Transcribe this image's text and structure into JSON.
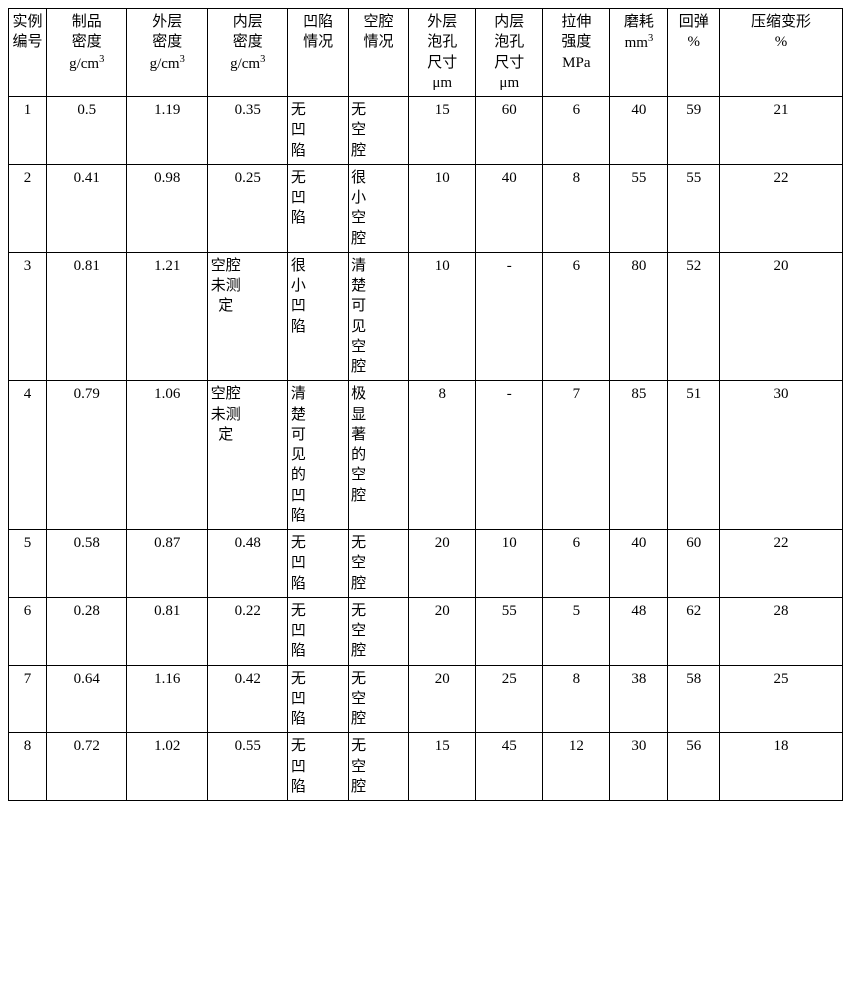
{
  "table": {
    "font_family": "SimSun",
    "border_color": "#000000",
    "background_color": "#ffffff",
    "text_color": "#000000",
    "font_size_pt": 11,
    "columns": [
      {
        "key": "id",
        "label": "实例编号",
        "unit": "",
        "width": 34,
        "vertical_label": true
      },
      {
        "key": "density",
        "label": "制品密度",
        "unit": "g/cm³",
        "width": 72,
        "vertical_label": true
      },
      {
        "key": "od",
        "label": "外层密度",
        "unit": "g/cm³",
        "width": 72,
        "vertical_label": true
      },
      {
        "key": "idens",
        "label": "内层密度",
        "unit": "g/cm³",
        "width": 72,
        "vertical_label": true
      },
      {
        "key": "dent",
        "label": "凹陷情况",
        "unit": "",
        "width": 54,
        "vertical_label": true
      },
      {
        "key": "cavity",
        "label": "空腔情况",
        "unit": "",
        "width": 54,
        "vertical_label": true
      },
      {
        "key": "opore",
        "label": "外层泡孔尺寸",
        "unit": "μm",
        "width": 60,
        "vertical_label": true
      },
      {
        "key": "ipore",
        "label": "内层泡孔尺寸",
        "unit": "μm",
        "width": 60,
        "vertical_label": true
      },
      {
        "key": "tensile",
        "label": "拉伸强度",
        "unit": "MPa",
        "width": 60,
        "vertical_label": true
      },
      {
        "key": "wear",
        "label": "磨耗",
        "unit": "mm³",
        "width": 52,
        "vertical_label": true
      },
      {
        "key": "rebound",
        "label": "回弹",
        "unit": "%",
        "width": 46,
        "vertical_label": true
      },
      {
        "key": "compset",
        "label": "压缩变形",
        "unit": "%",
        "width": 110,
        "vertical_label": false
      }
    ],
    "rows": [
      {
        "id": "1",
        "density": "0.5",
        "od": "1.19",
        "idens": "0.35",
        "dent": "无凹陷",
        "cavity": "无空腔",
        "opore": "15",
        "ipore": "60",
        "tensile": "6",
        "wear": "40",
        "rebound": "59",
        "compset": "21"
      },
      {
        "id": "2",
        "density": "0.41",
        "od": "0.98",
        "idens": "0.25",
        "dent": "无凹陷",
        "cavity": "很小空腔",
        "opore": "10",
        "ipore": "40",
        "tensile": "8",
        "wear": "55",
        "rebound": "55",
        "compset": "22"
      },
      {
        "id": "3",
        "density": "0.81",
        "od": "1.21",
        "idens": "空腔未测定",
        "dent": "很小凹陷",
        "cavity": "清楚可见空腔",
        "opore": "10",
        "ipore": "-",
        "tensile": "6",
        "wear": "80",
        "rebound": "52",
        "compset": "20"
      },
      {
        "id": "4",
        "density": "0.79",
        "od": "1.06",
        "idens": "空腔未测定",
        "dent": "清楚可见的凹陷",
        "cavity": "极显著的空腔",
        "opore": "8",
        "ipore": "-",
        "tensile": "7",
        "wear": "85",
        "rebound": "51",
        "compset": "30"
      },
      {
        "id": "5",
        "density": "0.58",
        "od": "0.87",
        "idens": "0.48",
        "dent": "无凹陷",
        "cavity": "无空腔",
        "opore": "20",
        "ipore": "10",
        "tensile": "6",
        "wear": "40",
        "rebound": "60",
        "compset": "22"
      },
      {
        "id": "6",
        "density": "0.28",
        "od": "0.81",
        "idens": "0.22",
        "dent": "无凹陷",
        "cavity": "无空腔",
        "opore": "20",
        "ipore": "55",
        "tensile": "5",
        "wear": "48",
        "rebound": "62",
        "compset": "28"
      },
      {
        "id": "7",
        "density": "0.64",
        "od": "1.16",
        "idens": "0.42",
        "dent": "无凹陷",
        "cavity": "无空腔",
        "opore": "20",
        "ipore": "25",
        "tensile": "8",
        "wear": "38",
        "rebound": "58",
        "compset": "25"
      },
      {
        "id": "8",
        "density": "0.72",
        "od": "1.02",
        "idens": "0.55",
        "dent": "无凹陷",
        "cavity": "无空腔",
        "opore": "15",
        "ipore": "45",
        "tensile": "12",
        "wear": "30",
        "rebound": "56",
        "compset": "18"
      }
    ],
    "vertical_value_columns": [
      "idens",
      "dent",
      "cavity"
    ]
  }
}
